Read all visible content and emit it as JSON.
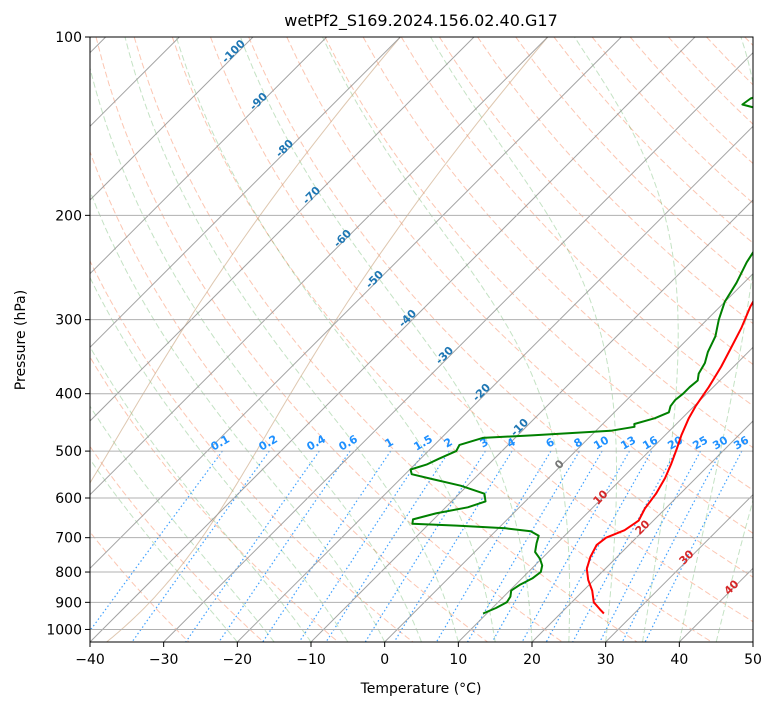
{
  "chart_data": {
    "type": "line",
    "title": "wetPf2_S169.2024.156.02.40.G17",
    "xlabel": "Temperature (°C)",
    "ylabel": "Pressure (hPa)",
    "xlim": [
      -40,
      50
    ],
    "ylim": [
      1050,
      100
    ],
    "y_scale": "log",
    "grid": true,
    "x_ticks": [
      -40,
      -30,
      -20,
      -10,
      0,
      10,
      20,
      30,
      40,
      50
    ],
    "x_tick_labels": [
      "−40",
      "−30",
      "−20",
      "−10",
      "0",
      "10",
      "20",
      "30",
      "40",
      "50"
    ],
    "y_ticks": [
      100,
      200,
      300,
      400,
      500,
      600,
      700,
      800,
      900,
      1000
    ],
    "y_tick_labels": [
      "100",
      "200",
      "300",
      "400",
      "500",
      "600",
      "700",
      "800",
      "900",
      "1000"
    ],
    "series": [
      {
        "color": "#ff0000",
        "points": [
          [
            25.9,
            940
          ],
          [
            24.8,
            925
          ],
          [
            23.0,
            900
          ],
          [
            21.2,
            860
          ],
          [
            19.2,
            825
          ],
          [
            17.5,
            790
          ],
          [
            16.4,
            755
          ],
          [
            15.6,
            720
          ],
          [
            15.9,
            700
          ],
          [
            17.4,
            680
          ],
          [
            18.0,
            655
          ],
          [
            17.2,
            625
          ],
          [
            16.7,
            590
          ],
          [
            15.8,
            555
          ],
          [
            14.7,
            525
          ],
          [
            13.4,
            495
          ],
          [
            12.2,
            470
          ],
          [
            10.9,
            440
          ],
          [
            10.2,
            420
          ],
          [
            9.4,
            390
          ],
          [
            8.3,
            360
          ],
          [
            7.1,
            335
          ],
          [
            5.8,
            310
          ],
          [
            4.1,
            285
          ],
          [
            3.0,
            265
          ],
          [
            1.2,
            245
          ],
          [
            0.0,
            230
          ],
          [
            -1.5,
            215
          ],
          [
            -2.8,
            203
          ],
          [
            -2.4,
            196
          ],
          [
            -1.2,
            190
          ],
          [
            1.6,
            180
          ],
          [
            4.2,
            172
          ],
          [
            6.6,
            164
          ],
          [
            8.0,
            157
          ],
          [
            10.2,
            149
          ],
          [
            12.6,
            142
          ],
          [
            16.7,
            134
          ],
          [
            19.0,
            128
          ],
          [
            21.1,
            122
          ],
          [
            22.5,
            117
          ],
          [
            23.8,
            111
          ],
          [
            24.9,
            107
          ],
          [
            27.1,
            100
          ]
        ]
      },
      {
        "color": "#008000",
        "points": [
          [
            9.5,
            940
          ],
          [
            10.5,
            920
          ],
          [
            11.2,
            900
          ],
          [
            10.9,
            880
          ],
          [
            10.2,
            860
          ],
          [
            10.6,
            840
          ],
          [
            11.4,
            820
          ],
          [
            11.7,
            800
          ],
          [
            11.0,
            780
          ],
          [
            9.8,
            760
          ],
          [
            8.2,
            740
          ],
          [
            7.2,
            715
          ],
          [
            6.5,
            695
          ],
          [
            4.8,
            683
          ],
          [
            1.0,
            675
          ],
          [
            -6.0,
            668
          ],
          [
            -12.3,
            663
          ],
          [
            -12.8,
            652
          ],
          [
            -10.5,
            637
          ],
          [
            -7.0,
            622
          ],
          [
            -5.4,
            608
          ],
          [
            -6.6,
            590
          ],
          [
            -10.9,
            572
          ],
          [
            -15.8,
            557
          ],
          [
            -19.1,
            547
          ],
          [
            -19.9,
            537
          ],
          [
            -18.4,
            527
          ],
          [
            -17.5,
            515
          ],
          [
            -16.2,
            500
          ],
          [
            -16.6,
            488
          ],
          [
            -14.4,
            475
          ],
          [
            -7.8,
            470
          ],
          [
            2.0,
            462
          ],
          [
            4.7,
            455
          ],
          [
            4.3,
            450
          ],
          [
            6.3,
            440
          ],
          [
            7.4,
            430
          ],
          [
            6.8,
            420
          ],
          [
            6.6,
            410
          ],
          [
            6.8,
            400
          ],
          [
            6.8,
            390
          ],
          [
            7.0,
            380
          ],
          [
            6.2,
            370
          ],
          [
            5.6,
            355
          ],
          [
            4.5,
            340
          ],
          [
            3.4,
            320
          ],
          [
            1.6,
            300
          ],
          [
            0.0,
            280
          ],
          [
            -1.0,
            260
          ],
          [
            -2.4,
            240
          ],
          [
            -3.2,
            225
          ],
          [
            -3.4,
            212
          ],
          [
            -3.6,
            205
          ],
          [
            -3.3,
            198
          ],
          [
            -4.5,
            187
          ],
          [
            -7.9,
            178
          ],
          [
            -11.5,
            171
          ],
          [
            -13.5,
            165
          ],
          [
            -15.1,
            160
          ],
          [
            -14.7,
            155
          ],
          [
            -16.0,
            150
          ],
          [
            -16.5,
            147
          ],
          [
            -15.1,
            143
          ],
          [
            -14.7,
            140
          ],
          [
            -16.4,
            137
          ],
          [
            -20.6,
            133
          ],
          [
            -24.4,
            130
          ],
          [
            -24.1,
            127
          ],
          [
            -22.6,
            124
          ],
          [
            -20.3,
            121
          ],
          [
            -11.0,
            118
          ],
          [
            -3.5,
            114
          ],
          [
            0.5,
            110
          ],
          [
            1.5,
            106
          ],
          [
            1.0,
            100
          ]
        ]
      }
    ],
    "annotations": {
      "dry_adiabat_labels": [
        "-100",
        "-90",
        "-80",
        "-70",
        "-60",
        "-50",
        "-40",
        "-30",
        "-20",
        "-10",
        "0",
        "10",
        "20",
        "30",
        "40"
      ],
      "mixing_ratio_labels": [
        "0.1",
        "0.2",
        "0.4",
        "0.6",
        "1",
        "1.5",
        "2",
        "3",
        "4",
        "6",
        "8",
        "10",
        "13",
        "16",
        "20",
        "25",
        "30",
        "36"
      ]
    }
  },
  "colors": {
    "temperature": "#ff0000",
    "dewpoint": "#008000",
    "dry_adiabat_label": "#1f77b4",
    "mixing_ratio": "#1e90ff",
    "moist_adiabat_label": "#d62728",
    "zero_label": "#777777"
  }
}
